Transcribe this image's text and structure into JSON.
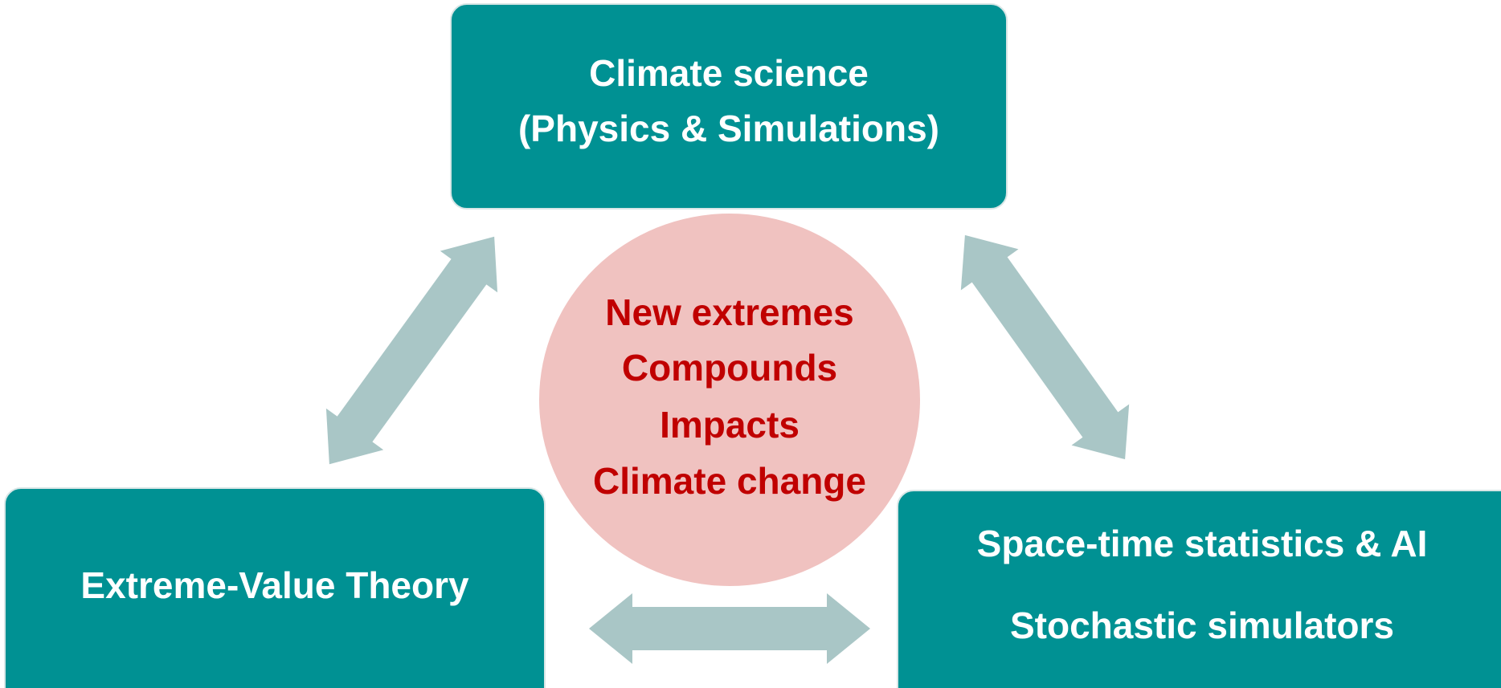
{
  "top": {
    "lines": [
      "Climate science",
      "(Physics & Simulations)"
    ]
  },
  "center": {
    "lines": [
      "New extremes",
      "Compounds",
      "Impacts",
      "Climate change"
    ]
  },
  "left": {
    "label": "Extreme-Value Theory"
  },
  "right": {
    "lines": [
      "Space-time statistics & AI",
      "Stochastic simulators"
    ]
  }
}
